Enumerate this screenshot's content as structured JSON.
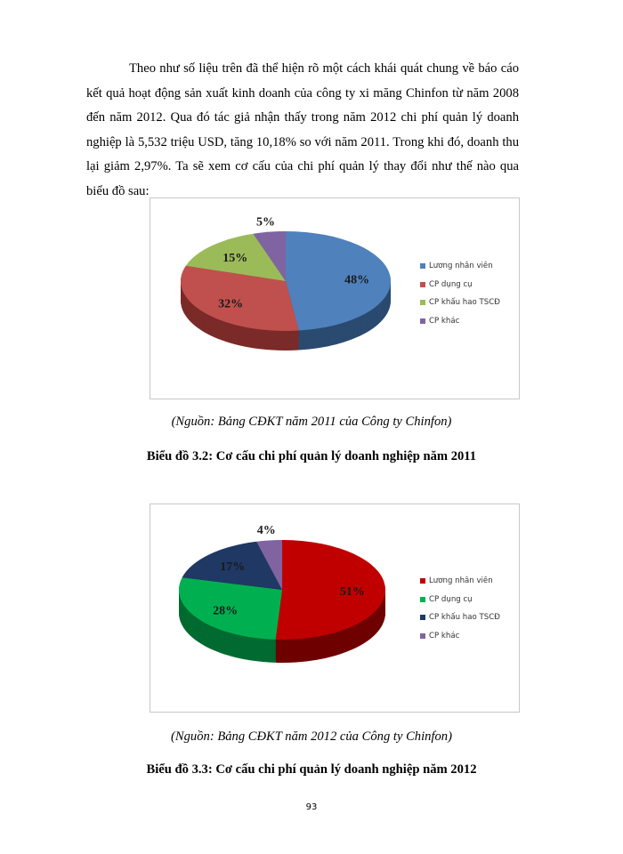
{
  "paragraph": "Theo như số liệu trên đã thể hiện rõ một cách khái quát chung về báo cáo kết quả hoạt động sản xuất kinh doanh của công ty xi măng Chinfon từ năm 2008 đến năm 2012. Qua đó tác giả nhận thấy trong năm 2012 chi phí quản lý doanh nghiệp là 5,532 triệu USD, tăng 10,18% so với năm 2011. Trong khi đó, doanh thu lại giảm 2,97%. Ta sẽ xem cơ cấu của chi phí quản lý thay đổi như thế nào qua biểu đồ sau:",
  "chart_data": [
    {
      "type": "pie",
      "style": "3d",
      "legend_position": "right",
      "categories": [
        "Lương nhân viên",
        "CP dụng cụ",
        "CP khấu hao TSCĐ",
        "CP khác"
      ],
      "values": [
        48,
        32,
        15,
        5
      ],
      "labels": [
        "48%",
        "32%",
        "15%",
        "5%"
      ],
      "colors": [
        "#4f81bd",
        "#c0504d",
        "#9bbb59",
        "#8064a2"
      ],
      "side_colors": [
        "#2a4a70",
        "#7a2a28",
        "#5f7a30",
        "#4f3c68"
      ]
    },
    {
      "type": "pie",
      "style": "3d",
      "legend_position": "right",
      "categories": [
        "Lương nhân viên",
        "CP dụng cụ",
        "CP khấu hao TSCĐ",
        "CP khác"
      ],
      "values": [
        51,
        28,
        17,
        4
      ],
      "labels": [
        "51%",
        "28%",
        "17%",
        "4%"
      ],
      "colors": [
        "#c00000",
        "#00b050",
        "#1f3864",
        "#8064a2"
      ],
      "side_colors": [
        "#6e0000",
        "#006a30",
        "#111f3a",
        "#4f3c68"
      ]
    }
  ],
  "captions": [
    {
      "source": "(Nguồn: Bảng CĐKT năm 2011 của Công ty Chinfon)",
      "title": "Biểu đồ 3.2: Cơ cấu chi phí quản lý doanh nghiệp năm 2011"
    },
    {
      "source": "(Nguồn: Bảng CĐKT năm 2012 của Công ty Chinfon)",
      "title": "Biểu đồ 3.3: Cơ cấu chi phí quản lý doanh nghiệp năm 2012"
    }
  ],
  "page_number": "93"
}
